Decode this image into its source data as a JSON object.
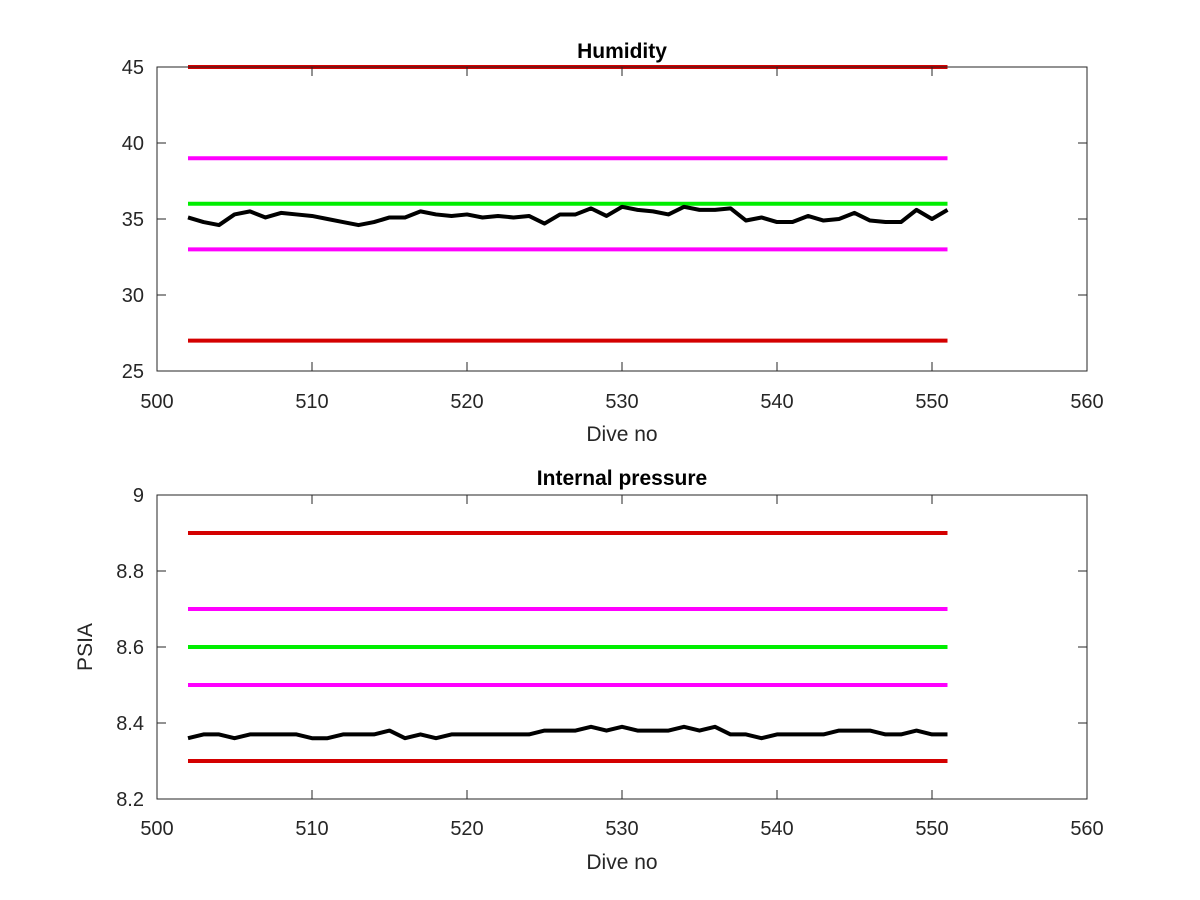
{
  "chart_data": [
    {
      "type": "line",
      "title": "Humidity",
      "xlabel": "Dive no",
      "ylabel": "",
      "xlim": [
        500,
        560
      ],
      "ylim": [
        25,
        45
      ],
      "xticks": [
        500,
        510,
        520,
        530,
        540,
        550,
        560
      ],
      "yticks": [
        25,
        30,
        35,
        40,
        45
      ],
      "xtick_labels": [
        "500",
        "510",
        "520",
        "530",
        "540",
        "550",
        "560"
      ],
      "ytick_labels": [
        "25",
        "30",
        "35",
        "40",
        "45"
      ],
      "grid": false,
      "series": [
        {
          "color": "#d40000",
          "x": [
            502,
            551
          ],
          "y": [
            45,
            45
          ]
        },
        {
          "color": "#ff00ff",
          "x": [
            502,
            551
          ],
          "y": [
            39,
            39
          ]
        },
        {
          "color": "#00ee00",
          "x": [
            502,
            551
          ],
          "y": [
            36,
            36
          ]
        },
        {
          "color": "#ff00ff",
          "x": [
            502,
            551
          ],
          "y": [
            33,
            33
          ]
        },
        {
          "color": "#d40000",
          "x": [
            502,
            551
          ],
          "y": [
            27,
            27
          ]
        },
        {
          "color": "#000000",
          "x": [
            502,
            503,
            504,
            505,
            506,
            507,
            508,
            509,
            510,
            511,
            512,
            513,
            514,
            515,
            516,
            517,
            518,
            519,
            520,
            521,
            522,
            523,
            524,
            525,
            526,
            527,
            528,
            529,
            530,
            531,
            532,
            533,
            534,
            535,
            536,
            537,
            538,
            539,
            540,
            541,
            542,
            543,
            544,
            545,
            546,
            547,
            548,
            549,
            550,
            551
          ],
          "y": [
            35.1,
            34.8,
            34.6,
            35.3,
            35.5,
            35.1,
            35.4,
            35.3,
            35.2,
            35.0,
            34.8,
            34.6,
            34.8,
            35.1,
            35.1,
            35.5,
            35.3,
            35.2,
            35.3,
            35.1,
            35.2,
            35.1,
            35.2,
            34.7,
            35.3,
            35.3,
            35.7,
            35.2,
            35.8,
            35.6,
            35.5,
            35.3,
            35.8,
            35.6,
            35.6,
            35.7,
            34.9,
            35.1,
            34.8,
            34.8,
            35.2,
            34.9,
            35.0,
            35.4,
            34.9,
            34.8,
            34.8,
            35.6,
            35.0,
            35.6
          ]
        }
      ]
    },
    {
      "type": "line",
      "title": "Internal pressure",
      "xlabel": "Dive no",
      "ylabel": "PSIA",
      "xlim": [
        500,
        560
      ],
      "ylim": [
        8.2,
        9
      ],
      "xticks": [
        500,
        510,
        520,
        530,
        540,
        550,
        560
      ],
      "yticks": [
        8.2,
        8.4,
        8.6,
        8.8,
        9
      ],
      "xtick_labels": [
        "500",
        "510",
        "520",
        "530",
        "540",
        "550",
        "560"
      ],
      "ytick_labels": [
        "8.2",
        "8.4",
        "8.6",
        "8.8",
        "9"
      ],
      "grid": false,
      "series": [
        {
          "color": "#d40000",
          "x": [
            502,
            551
          ],
          "y": [
            8.9,
            8.9
          ]
        },
        {
          "color": "#ff00ff",
          "x": [
            502,
            551
          ],
          "y": [
            8.7,
            8.7
          ]
        },
        {
          "color": "#00ee00",
          "x": [
            502,
            551
          ],
          "y": [
            8.6,
            8.6
          ]
        },
        {
          "color": "#ff00ff",
          "x": [
            502,
            551
          ],
          "y": [
            8.5,
            8.5
          ]
        },
        {
          "color": "#d40000",
          "x": [
            502,
            551
          ],
          "y": [
            8.3,
            8.3
          ]
        },
        {
          "color": "#000000",
          "x": [
            502,
            503,
            504,
            505,
            506,
            507,
            508,
            509,
            510,
            511,
            512,
            513,
            514,
            515,
            516,
            517,
            518,
            519,
            520,
            521,
            522,
            523,
            524,
            525,
            526,
            527,
            528,
            529,
            530,
            531,
            532,
            533,
            534,
            535,
            536,
            537,
            538,
            539,
            540,
            541,
            542,
            543,
            544,
            545,
            546,
            547,
            548,
            549,
            550,
            551
          ],
          "y": [
            8.36,
            8.37,
            8.37,
            8.36,
            8.37,
            8.37,
            8.37,
            8.37,
            8.36,
            8.36,
            8.37,
            8.37,
            8.37,
            8.38,
            8.36,
            8.37,
            8.36,
            8.37,
            8.37,
            8.37,
            8.37,
            8.37,
            8.37,
            8.38,
            8.38,
            8.38,
            8.39,
            8.38,
            8.39,
            8.38,
            8.38,
            8.38,
            8.39,
            8.38,
            8.39,
            8.37,
            8.37,
            8.36,
            8.37,
            8.37,
            8.37,
            8.37,
            8.38,
            8.38,
            8.38,
            8.37,
            8.37,
            8.38,
            8.37,
            8.37
          ]
        }
      ]
    }
  ]
}
